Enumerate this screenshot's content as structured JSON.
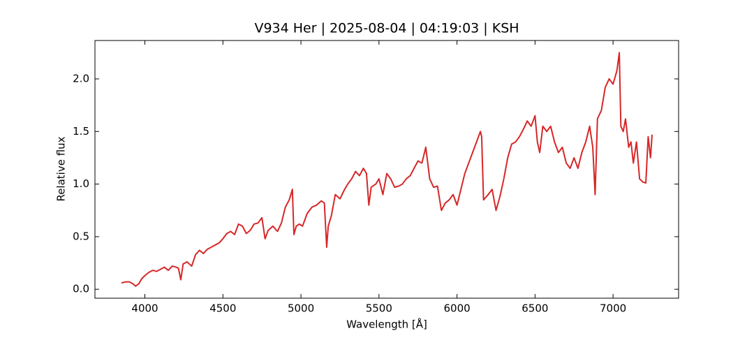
{
  "chart_data": {
    "type": "line",
    "title": "V934 Her | 2025-08-04 | 04:19:03 | KSH",
    "x_label": "Wavelength [Å]",
    "y_label": "Relative flux",
    "xlim": [
      3680,
      7420
    ],
    "ylim": [
      -0.085,
      2.365
    ],
    "xticks": [
      4000,
      4500,
      5000,
      5500,
      6000,
      6500,
      7000
    ],
    "yticks": [
      {
        "value": 0,
        "label": "0.0"
      },
      0.5,
      {
        "value": 1,
        "label": "1.0"
      },
      1.5,
      {
        "value": 2,
        "label": "2.0"
      }
    ],
    "x": [
      3850,
      3875,
      3900,
      3925,
      3940,
      3960,
      3980,
      4000,
      4025,
      4050,
      4075,
      4100,
      4125,
      4150,
      4175,
      4200,
      4215,
      4230,
      4245,
      4270,
      4300,
      4325,
      4350,
      4375,
      4400,
      4425,
      4450,
      4475,
      4500,
      4525,
      4550,
      4575,
      4600,
      4625,
      4650,
      4675,
      4700,
      4725,
      4750,
      4770,
      4790,
      4820,
      4850,
      4875,
      4900,
      4925,
      4945,
      4955,
      4970,
      4990,
      5010,
      5040,
      5070,
      5100,
      5130,
      5150,
      5165,
      5175,
      5195,
      5220,
      5250,
      5280,
      5300,
      5325,
      5350,
      5375,
      5400,
      5420,
      5435,
      5450,
      5480,
      5500,
      5525,
      5550,
      5575,
      5600,
      5625,
      5650,
      5675,
      5700,
      5725,
      5750,
      5775,
      5800,
      5825,
      5850,
      5875,
      5900,
      5925,
      5950,
      5975,
      6000,
      6025,
      6050,
      6075,
      6100,
      6125,
      6150,
      6158,
      6170,
      6200,
      6225,
      6250,
      6275,
      6300,
      6325,
      6350,
      6375,
      6400,
      6425,
      6450,
      6475,
      6500,
      6515,
      6530,
      6550,
      6575,
      6600,
      6625,
      6650,
      6675,
      6700,
      6725,
      6750,
      6775,
      6800,
      6825,
      6850,
      6870,
      6885,
      6900,
      6925,
      6950,
      6975,
      7000,
      7025,
      7040,
      7050,
      7065,
      7080,
      7100,
      7115,
      7130,
      7150,
      7170,
      7190,
      7210,
      7225,
      7240,
      7250
    ],
    "series": [
      {
        "color": "#d62728",
        "values": [
          0.06,
          0.07,
          0.07,
          0.05,
          0.03,
          0.05,
          0.1,
          0.13,
          0.16,
          0.18,
          0.17,
          0.19,
          0.21,
          0.18,
          0.22,
          0.21,
          0.2,
          0.09,
          0.24,
          0.26,
          0.22,
          0.33,
          0.37,
          0.34,
          0.38,
          0.4,
          0.42,
          0.44,
          0.48,
          0.53,
          0.55,
          0.52,
          0.62,
          0.6,
          0.53,
          0.56,
          0.62,
          0.63,
          0.68,
          0.48,
          0.56,
          0.6,
          0.55,
          0.63,
          0.78,
          0.85,
          0.95,
          0.52,
          0.6,
          0.62,
          0.6,
          0.72,
          0.78,
          0.8,
          0.84,
          0.82,
          0.4,
          0.6,
          0.7,
          0.9,
          0.86,
          0.95,
          1.0,
          1.05,
          1.12,
          1.08,
          1.15,
          1.1,
          0.8,
          0.97,
          1.0,
          1.05,
          0.9,
          1.1,
          1.05,
          0.97,
          0.98,
          1.0,
          1.05,
          1.08,
          1.15,
          1.22,
          1.2,
          1.35,
          1.05,
          0.97,
          0.98,
          0.75,
          0.82,
          0.85,
          0.9,
          0.8,
          0.95,
          1.1,
          1.2,
          1.3,
          1.4,
          1.5,
          1.45,
          0.85,
          0.9,
          0.95,
          0.75,
          0.88,
          1.05,
          1.25,
          1.38,
          1.4,
          1.45,
          1.52,
          1.6,
          1.55,
          1.65,
          1.4,
          1.3,
          1.55,
          1.5,
          1.55,
          1.4,
          1.3,
          1.35,
          1.2,
          1.15,
          1.25,
          1.15,
          1.3,
          1.4,
          1.55,
          1.35,
          0.9,
          1.62,
          1.7,
          1.92,
          2.0,
          1.95,
          2.08,
          2.25,
          1.55,
          1.5,
          1.62,
          1.35,
          1.4,
          1.2,
          1.4,
          1.05,
          1.02,
          1.01,
          1.45,
          1.25,
          1.47
        ]
      }
    ]
  }
}
